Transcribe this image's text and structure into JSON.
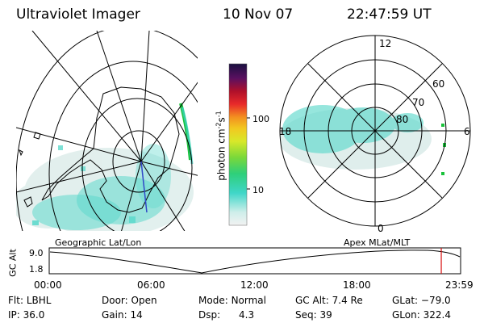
{
  "header": {
    "title": "Ultraviolet Imager",
    "date": "10 Nov 07",
    "time": "22:47:59 UT"
  },
  "colorbar": {
    "label": "photon cm",
    "exp1": "-2",
    "s": "s",
    "exp2": "-1",
    "ticks": [
      "100",
      "10"
    ]
  },
  "polar": {
    "clock_labels": [
      "12",
      "18",
      "6",
      "0"
    ],
    "lat_labels": [
      "60",
      "70",
      "80"
    ]
  },
  "timeline": {
    "left_title": "Geographic Lat/Lon",
    "right_title": "Apex MLat/MLT",
    "ylabel": "GC Alt",
    "y_ticks": [
      "9.0",
      "1.8"
    ],
    "x_ticks": [
      "00:00",
      "06:00",
      "12:00",
      "18:00",
      "23:59"
    ],
    "current_time_fraction": 0.953
  },
  "info": {
    "flt_label": "Flt:",
    "flt": "LBHL",
    "ip_label": "IP:",
    "ip": "36.0",
    "door_label": "Door:",
    "door": "Open",
    "gain_label": "Gain:",
    "gain": "14",
    "mode_label": "Mode:",
    "mode": "Normal",
    "dsp_label": "Dsp:",
    "dsp": "4.3",
    "gcalt_label": "GC Alt:",
    "gcalt": "7.4 Re",
    "seq_label": "Seq:",
    "seq": "39",
    "glat_label": "GLat:",
    "glat": "−79.0",
    "glon_label": "GLon:",
    "glon": "322.4"
  },
  "colors": {
    "aurora_cyan": "#3fd6c8",
    "aurora_pale": "#cdeeea",
    "marker_red": "#d81010",
    "green_spots": "#19c23a"
  }
}
